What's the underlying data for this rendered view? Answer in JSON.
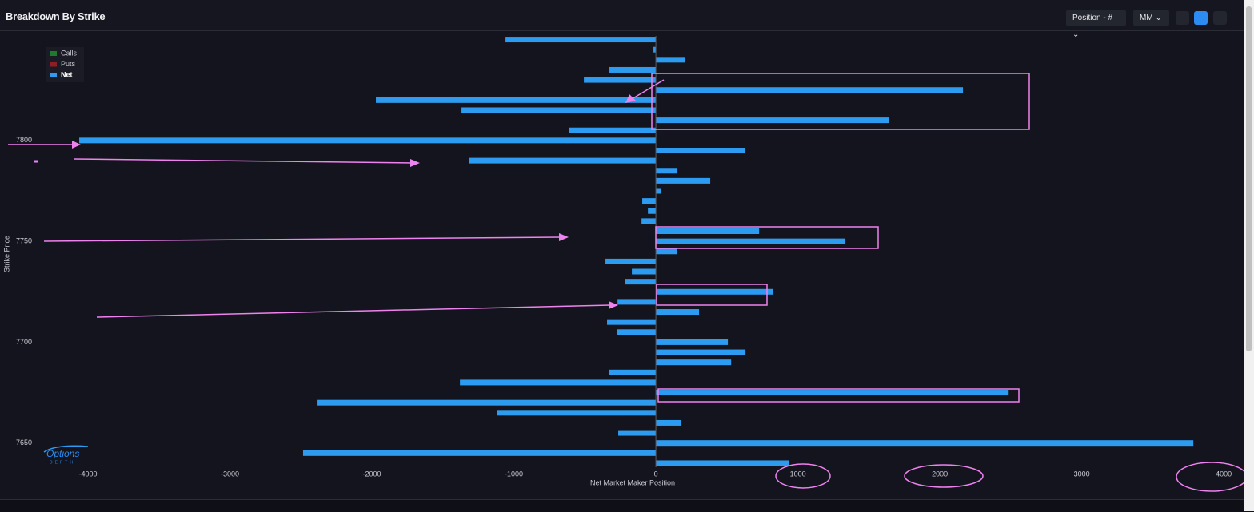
{
  "header": {
    "title": "Breakdown By Strike",
    "position_dropdown": "Position - #",
    "mm_dropdown": "MM"
  },
  "logo": {
    "line1": "Options",
    "line2": "DEPTH"
  },
  "chart_data": {
    "type": "hbar",
    "xlabel": "Net Market Maker Position",
    "ylabel": "Strike Price",
    "y": [
      7850,
      7845,
      7840,
      7835,
      7830,
      7825,
      7820,
      7815,
      7810,
      7805,
      7800,
      7795,
      7790,
      7785,
      7780,
      7775,
      7770,
      7765,
      7760,
      7755,
      7750,
      7745,
      7740,
      7735,
      7730,
      7725,
      7720,
      7715,
      7710,
      7705,
      7700,
      7695,
      7690,
      7685,
      7680,
      7675,
      7670,
      7665,
      7660,
      7655,
      7650,
      7645,
      7640
    ],
    "series": [
      {
        "name": "Net",
        "color": "#2d9cf0",
        "values": [
          -1059,
          -17,
          208,
          -327,
          -507,
          2163,
          -1972,
          -1369,
          1639,
          -614,
          -4062,
          625,
          -1313,
          146,
          383,
          39,
          -96,
          -56,
          -101,
          727,
          1335,
          146,
          -355,
          -169,
          -220,
          823,
          -270,
          304,
          -344,
          -276,
          507,
          631,
          530,
          -332,
          -1380,
          2485,
          -2383,
          -1121,
          180,
          -265,
          3786,
          -2485,
          935
        ]
      }
    ],
    "legend": [
      {
        "name": "Calls",
        "color": "#1f7a2e"
      },
      {
        "name": "Puts",
        "color": "#8c1f1f"
      },
      {
        "name": "Net",
        "color": "#2d9cf0"
      }
    ],
    "xlim": [
      -4310,
      4140
    ],
    "xticks": [
      -4000,
      -3000,
      -2000,
      -1000,
      0,
      1000,
      2000,
      3000,
      4000
    ],
    "ylim": [
      7638,
      7853
    ],
    "yticks": [
      7650,
      7700,
      7750,
      7800
    ]
  }
}
